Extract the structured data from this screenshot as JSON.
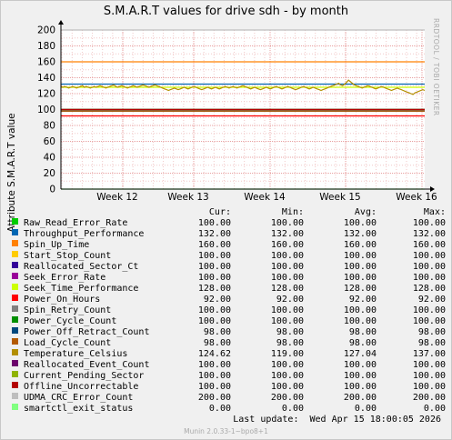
{
  "title": "S.M.A.R.T values for drive sdh - by month",
  "ylabel": "Attribute S.M.A.R.T value",
  "side_label": "RRDTOOL / TOBI OETIKER",
  "footer": "Munin 2.0.33-1~bpo8+1",
  "last_update": "Last update:  Wed Apr 15 18:00:05 2026",
  "legend_headers": [
    "Cur:",
    "Min:",
    "Avg:",
    "Max:"
  ],
  "colors": {
    "grid_minor": "#f2c8c8",
    "grid_major": "#e8a0a0",
    "plot_bg": "#ffffff",
    "axis": "#000000"
  },
  "chart_data": {
    "type": "line",
    "ylim": [
      0,
      200
    ],
    "y_ticks": [
      0,
      20,
      40,
      60,
      80,
      100,
      120,
      140,
      160,
      180,
      200
    ],
    "x_ticks": [
      "Week 12",
      "Week 13",
      "Week 14",
      "Week 15",
      "Week 16"
    ],
    "grid": true,
    "series": [
      {
        "name": "Raw_Read_Error_Rate",
        "color": "#00cc00",
        "cur": "100.00",
        "min": "100.00",
        "avg": "100.00",
        "max": "100.00"
      },
      {
        "name": "Throughput_Performance",
        "color": "#0066b3",
        "cur": "132.00",
        "min": "132.00",
        "avg": "132.00",
        "max": "132.00"
      },
      {
        "name": "Spin_Up_Time",
        "color": "#ff8000",
        "cur": "160.00",
        "min": "160.00",
        "avg": "160.00",
        "max": "160.00"
      },
      {
        "name": "Start_Stop_Count",
        "color": "#ffcc00",
        "cur": "100.00",
        "min": "100.00",
        "avg": "100.00",
        "max": "100.00"
      },
      {
        "name": "Reallocated_Sector_Ct",
        "color": "#330099",
        "cur": "100.00",
        "min": "100.00",
        "avg": "100.00",
        "max": "100.00"
      },
      {
        "name": "Seek_Error_Rate",
        "color": "#990099",
        "cur": "100.00",
        "min": "100.00",
        "avg": "100.00",
        "max": "100.00"
      },
      {
        "name": "Seek_Time_Performance",
        "color": "#ccff00",
        "cur": "128.00",
        "min": "128.00",
        "avg": "128.00",
        "max": "128.00"
      },
      {
        "name": "Power_On_Hours",
        "color": "#ff0000",
        "cur": "92.00",
        "min": "92.00",
        "avg": "92.00",
        "max": "92.00"
      },
      {
        "name": "Spin_Retry_Count",
        "color": "#808080",
        "cur": "100.00",
        "min": "100.00",
        "avg": "100.00",
        "max": "100.00"
      },
      {
        "name": "Power_Cycle_Count",
        "color": "#008f00",
        "cur": "100.00",
        "min": "100.00",
        "avg": "100.00",
        "max": "100.00"
      },
      {
        "name": "Power_Off_Retract_Count",
        "color": "#00487d",
        "cur": "98.00",
        "min": "98.00",
        "avg": "98.00",
        "max": "98.00"
      },
      {
        "name": "Load_Cycle_Count",
        "color": "#b35a00",
        "cur": "98.00",
        "min": "98.00",
        "avg": "98.00",
        "max": "98.00"
      },
      {
        "name": "Temperature_Celsius",
        "color": "#b38f00",
        "cur": "124.62",
        "min": "119.00",
        "avg": "127.04",
        "max": "137.00"
      },
      {
        "name": "Reallocated_Event_Count",
        "color": "#6b006b",
        "cur": "100.00",
        "min": "100.00",
        "avg": "100.00",
        "max": "100.00"
      },
      {
        "name": "Current_Pending_Sector",
        "color": "#8fb300",
        "cur": "100.00",
        "min": "100.00",
        "avg": "100.00",
        "max": "100.00"
      },
      {
        "name": "Offline_Uncorrectable",
        "color": "#b30000",
        "cur": "100.00",
        "min": "100.00",
        "avg": "100.00",
        "max": "100.00"
      },
      {
        "name": "UDMA_CRC_Error_Count",
        "color": "#bebebe",
        "cur": "200.00",
        "min": "200.00",
        "avg": "200.00",
        "max": "200.00"
      },
      {
        "name": "smartctl_exit_status",
        "color": "#80ff80",
        "cur": "0.00",
        "min": "0.00",
        "avg": "0.00",
        "max": "0.00"
      }
    ],
    "temperature_trace": [
      129,
      128,
      129,
      128,
      127,
      128,
      129,
      128,
      127,
      128,
      129,
      130,
      128,
      129,
      128,
      127,
      128,
      129,
      128,
      129,
      130,
      129,
      128,
      127,
      128,
      129,
      130,
      131,
      129,
      128,
      129,
      130,
      129,
      128,
      127,
      128,
      129,
      130,
      129,
      128,
      129,
      130,
      131,
      130,
      129,
      128,
      129,
      130,
      131,
      130,
      129,
      128,
      127,
      126,
      125,
      124,
      125,
      126,
      127,
      126,
      125,
      126,
      127,
      128,
      127,
      126,
      127,
      128,
      129,
      128,
      127,
      126,
      125,
      126,
      127,
      128,
      127,
      126,
      127,
      128,
      127,
      126,
      127,
      128,
      129,
      128,
      127,
      128,
      129,
      128,
      127,
      128,
      129,
      130,
      129,
      128,
      127,
      126,
      127,
      128,
      127,
      126,
      125,
      126,
      127,
      128,
      127,
      126,
      127,
      128,
      129,
      128,
      127,
      126,
      127,
      128,
      129,
      128,
      127,
      126,
      125,
      126,
      127,
      128,
      129,
      128,
      127,
      126,
      127,
      128,
      127,
      126,
      125,
      124,
      125,
      126,
      127,
      128,
      129,
      130,
      131,
      132,
      133,
      131,
      130,
      132,
      134,
      137,
      135,
      133,
      131,
      130,
      129,
      128,
      127,
      128,
      129,
      130,
      129,
      128,
      127,
      126,
      127,
      128,
      129,
      128,
      127,
      126,
      125,
      124,
      125,
      126,
      127,
      126,
      125,
      124,
      123,
      122,
      121,
      120,
      119,
      121,
      122,
      123,
      124,
      125,
      124
    ]
  }
}
